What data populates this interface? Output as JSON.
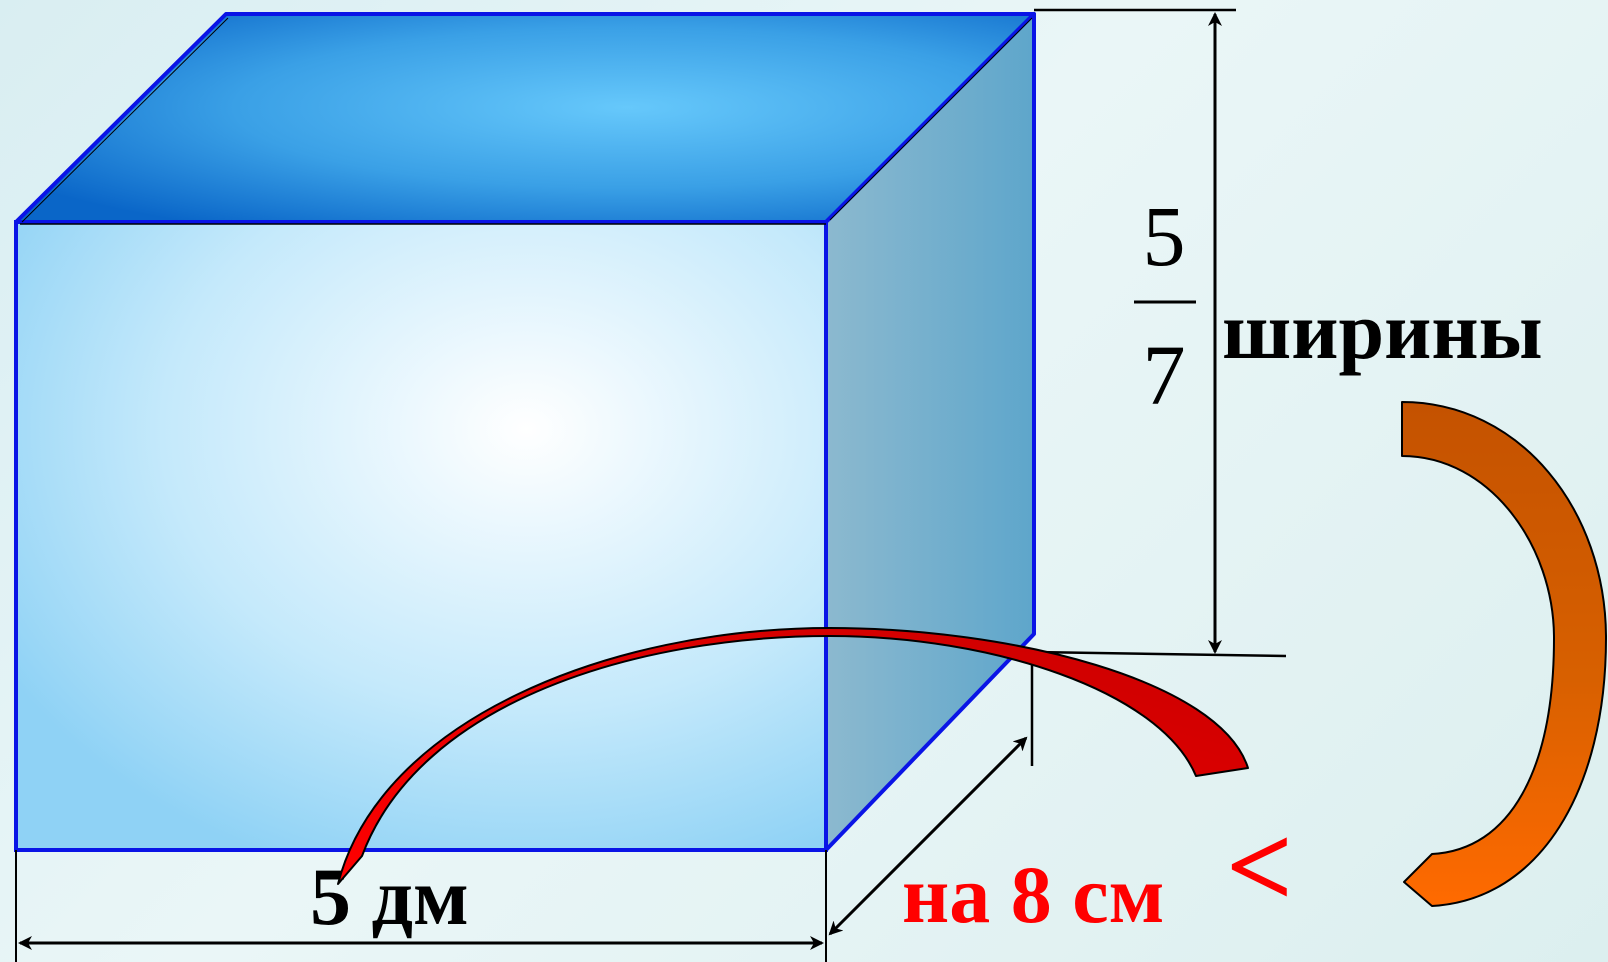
{
  "labels": {
    "length": "5 дм",
    "height_num": "5",
    "height_den": "7",
    "height_word": "ширины",
    "width_diff": "на 8 см",
    "less_sign": "<"
  },
  "colors": {
    "edge": "#0a14e6",
    "top_face_light": "#66c8fb",
    "top_face_dark": "#0a66c8",
    "front_face_light": "#ffffff",
    "front_face_dark": "#8fd2f5",
    "side_face": "#6fabcc",
    "red_arrow": "#e00000",
    "orange_arrow": "#ff6a00",
    "text_black": "#000000",
    "text_red": "#ff0000"
  }
}
